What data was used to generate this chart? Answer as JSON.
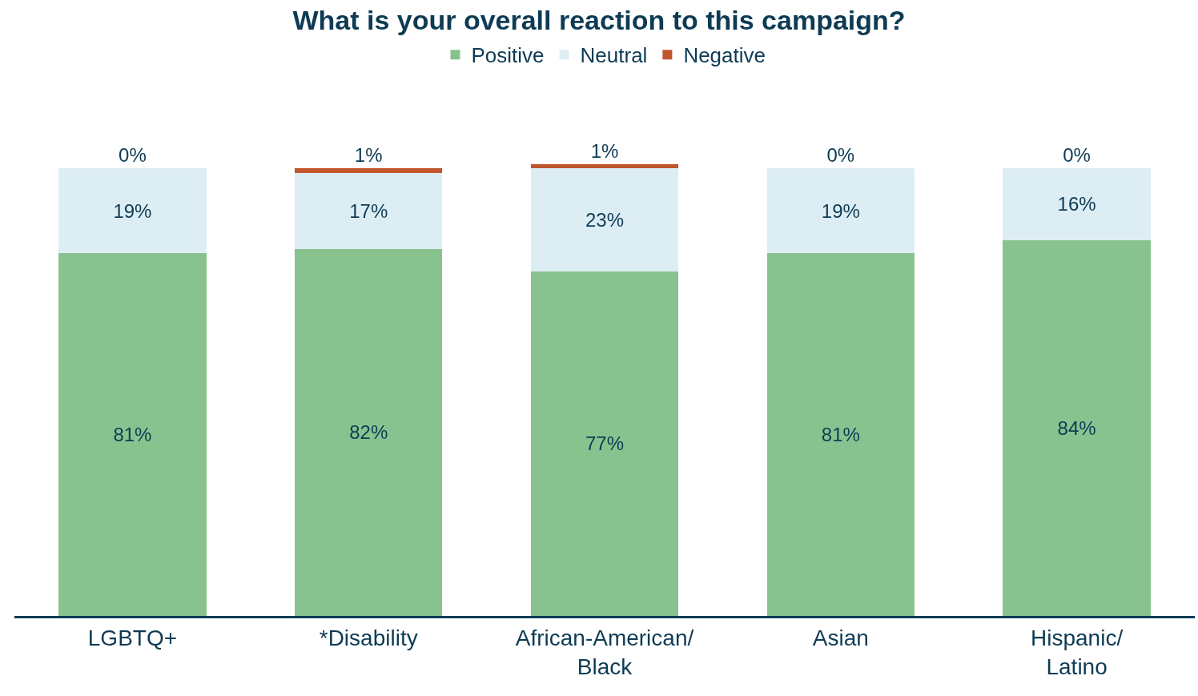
{
  "chart_data": {
    "type": "bar",
    "title": "What is your overall reaction to this campaign?",
    "categories": [
      "LGBTQ+",
      "*Disability",
      "African-American/\nBlack",
      "Asian",
      "Hispanic/\nLatino"
    ],
    "stacked": true,
    "legend": "top",
    "series": [
      {
        "name": "Positive",
        "color": "#88c38f",
        "values": [
          81,
          82,
          77,
          81,
          84
        ],
        "value_labels": [
          "81%",
          "82%",
          "77%",
          "81%",
          "84%"
        ]
      },
      {
        "name": "Neutral",
        "color": "#ddedf4",
        "values": [
          19,
          17,
          23,
          19,
          16
        ],
        "value_labels": [
          "19%",
          "17%",
          "23%",
          "19%",
          "16%"
        ]
      },
      {
        "name": "Negative",
        "color": "#c0562d",
        "values": [
          0,
          1,
          1,
          0,
          0
        ],
        "value_labels": [
          "0%",
          "1%",
          "1%",
          "0%",
          "0%"
        ]
      }
    ]
  }
}
